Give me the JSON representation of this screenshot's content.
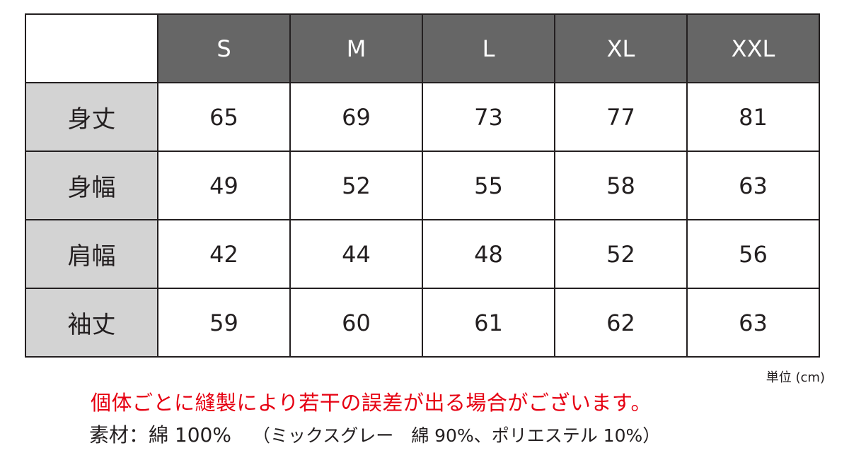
{
  "table": {
    "columns": [
      "S",
      "M",
      "L",
      "XL",
      "XXL"
    ],
    "rows": [
      {
        "label": "身丈",
        "values": [
          "65",
          "69",
          "73",
          "77",
          "81"
        ]
      },
      {
        "label": "身幅",
        "values": [
          "49",
          "52",
          "55",
          "58",
          "63"
        ]
      },
      {
        "label": "肩幅",
        "values": [
          "42",
          "44",
          "48",
          "52",
          "56"
        ]
      },
      {
        "label": "袖丈",
        "values": [
          "59",
          "60",
          "61",
          "62",
          "63"
        ]
      }
    ],
    "header_color": "#666666",
    "row_header_color": "#d3d3d3"
  },
  "unit": "単位 (cm)",
  "note": "個体ごとに縫製により若干の誤差が出る場合がございます。",
  "note_color": "#e60012",
  "material": "素材：綿 100%",
  "material_detail": "（ミックスグレー　綿 90%、ポリエステル 10%）"
}
